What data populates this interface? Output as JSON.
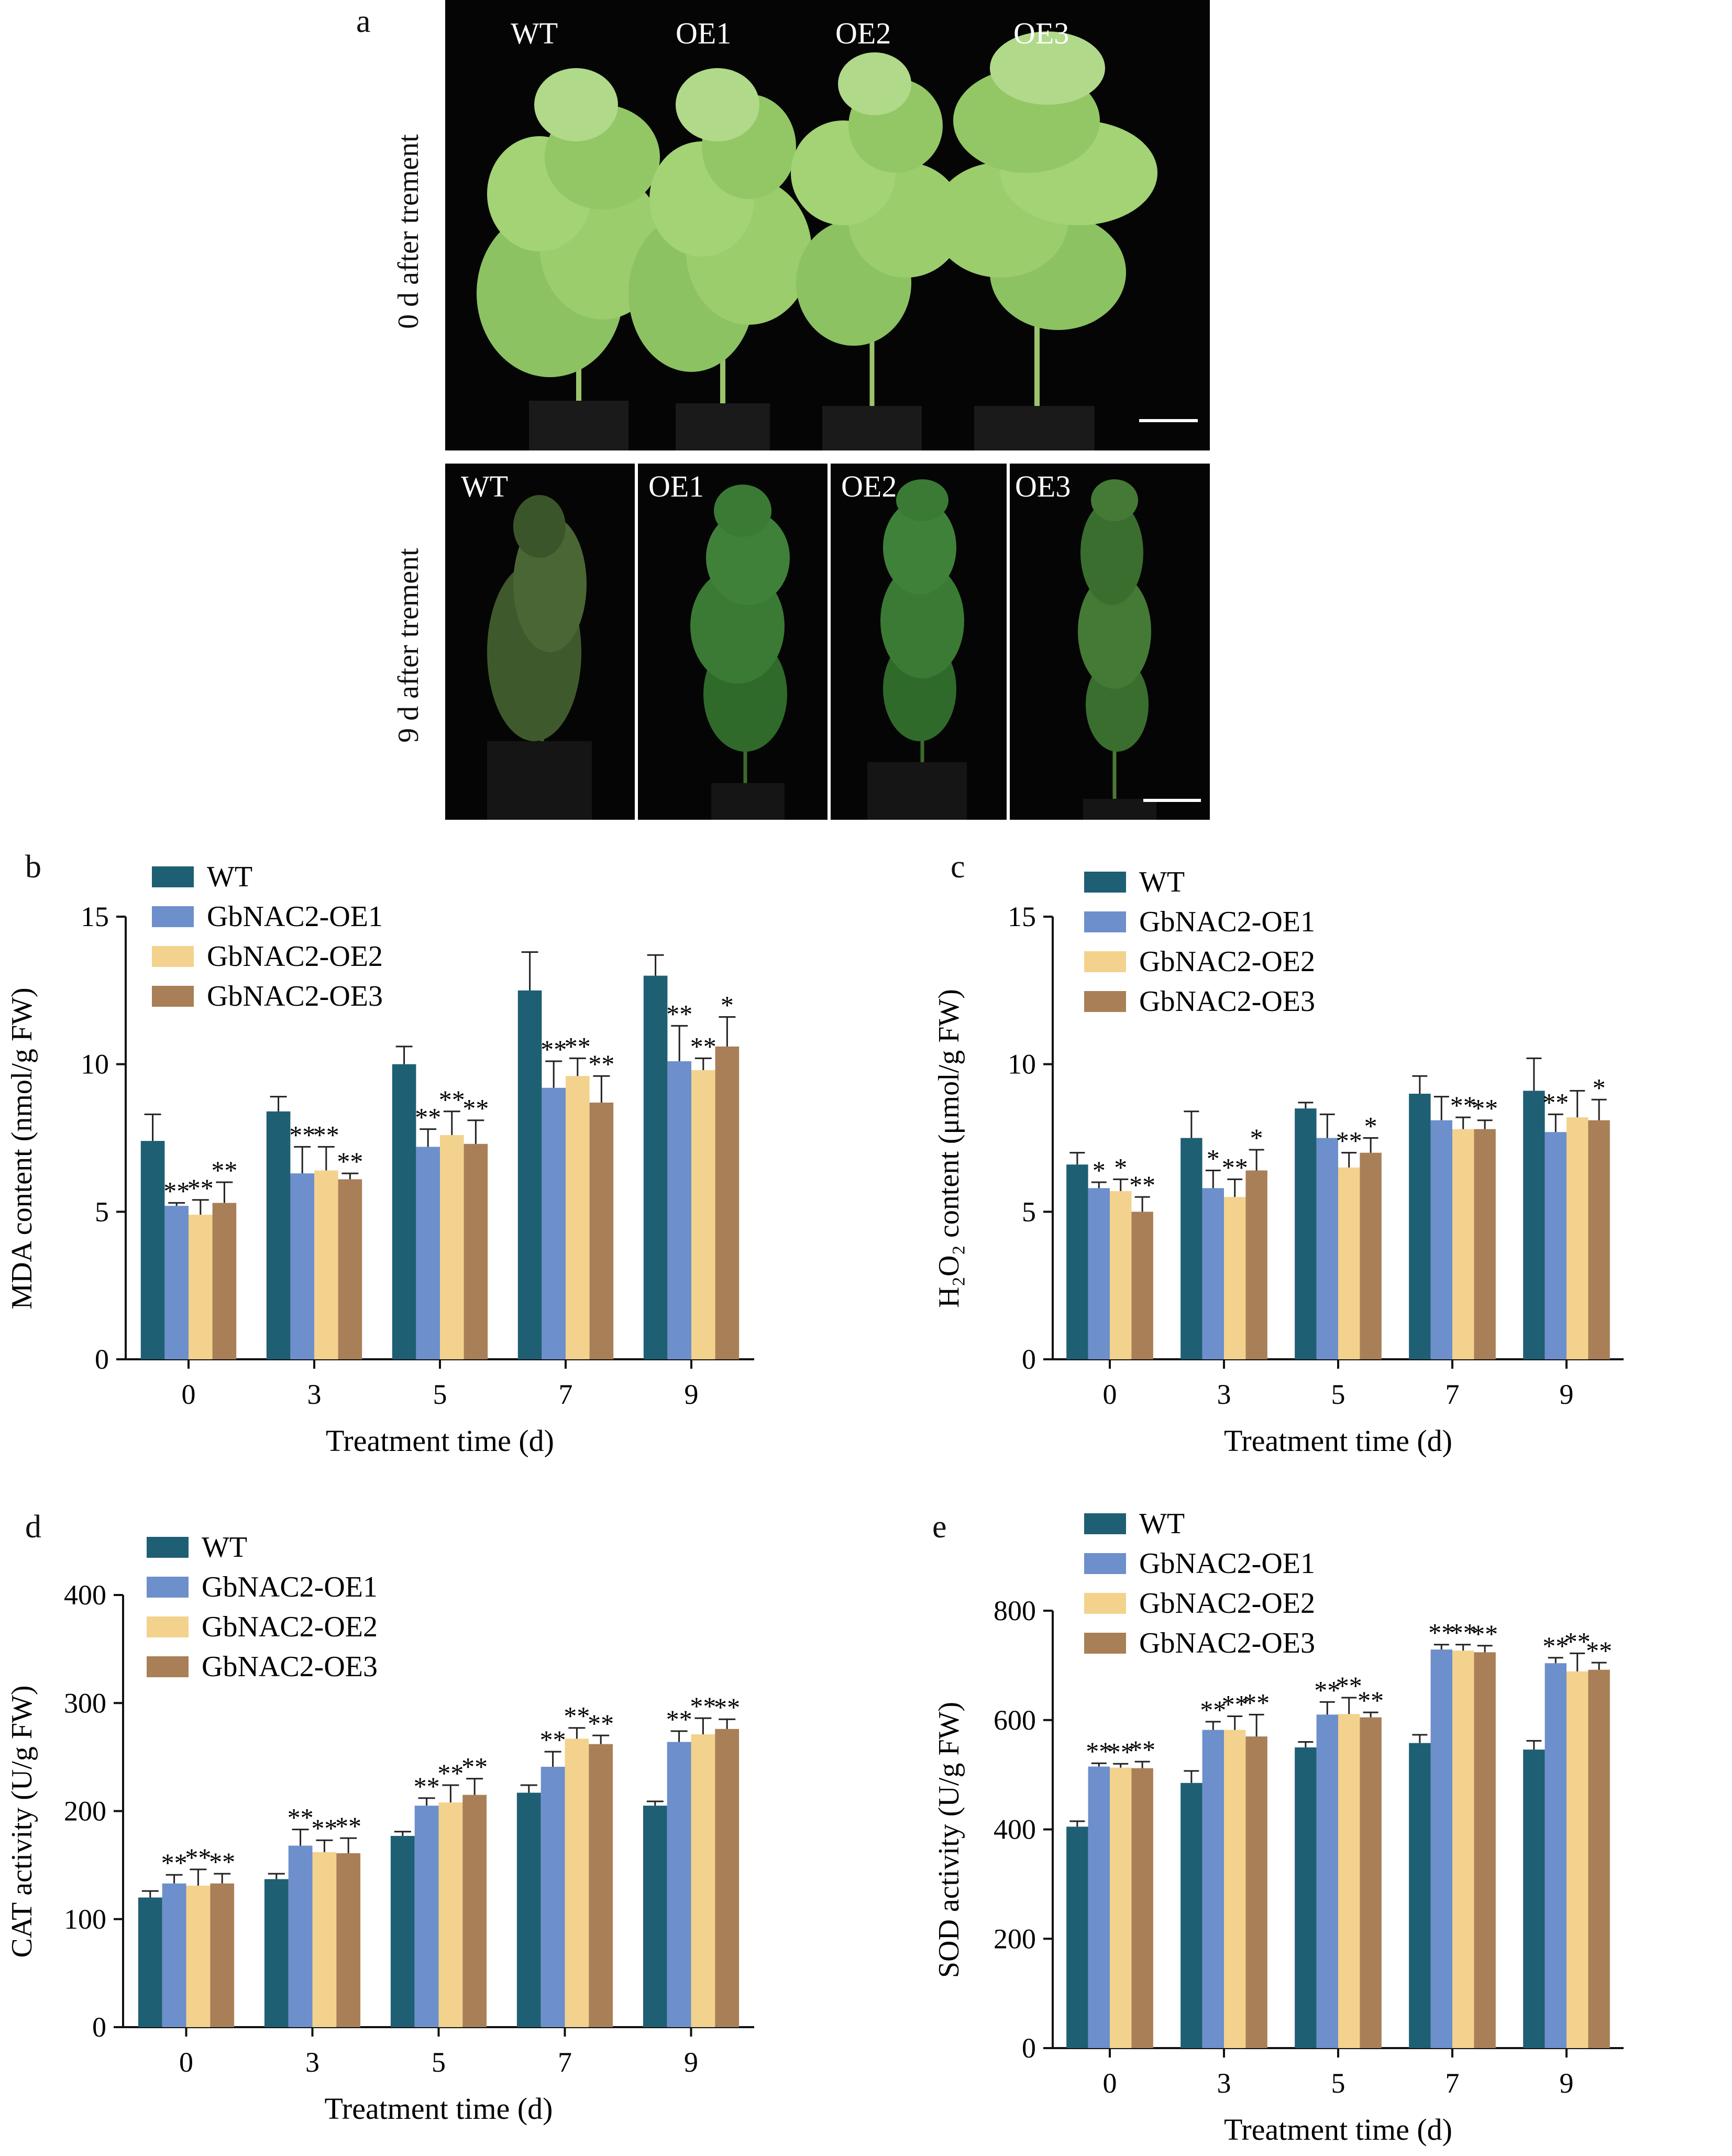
{
  "panel_a": {
    "letter": "a",
    "row_top_label": "0 d after trement",
    "row_bottom_label": "9 d after trement",
    "top_labels": [
      "WT",
      "OE1",
      "OE2",
      "OE3"
    ],
    "bottom_labels": [
      "WT",
      "OE1",
      "OE2",
      "OE3"
    ]
  },
  "colors": {
    "WT": "#1e5f73",
    "GbNAC2-OE1": "#6d8fcb",
    "GbNAC2-OE2": "#f3d28e",
    "GbNAC2-OE3": "#a97f57",
    "photo_background": "#050505",
    "healthy_leaf": "#8cc262",
    "wilted_leaf": "#3e5a2c"
  },
  "chart_data": [
    {
      "id": "b",
      "letter": "b",
      "type": "bar",
      "ylabel": "MDA content (nmol/g FW)",
      "xlabel": "Treatment time (d)",
      "categories": [
        "0",
        "3",
        "5",
        "7",
        "9"
      ],
      "ylim": [
        0,
        15
      ],
      "yticks": [
        0,
        5,
        10,
        15
      ],
      "legend_position": "top-left",
      "series": [
        {
          "name": "WT",
          "values": [
            7.4,
            8.4,
            10.0,
            12.5,
            13.0
          ],
          "errors": [
            0.9,
            0.5,
            0.6,
            1.3,
            0.7
          ],
          "sig": [
            "",
            "",
            "",
            "",
            ""
          ]
        },
        {
          "name": "GbNAC2-OE1",
          "values": [
            5.2,
            6.3,
            7.2,
            9.2,
            10.1
          ],
          "errors": [
            0.1,
            0.9,
            0.6,
            0.9,
            1.2
          ],
          "sig": [
            "**",
            "**",
            "**",
            "**",
            "**"
          ]
        },
        {
          "name": "GbNAC2-OE2",
          "values": [
            4.9,
            6.4,
            7.6,
            9.6,
            9.8
          ],
          "errors": [
            0.5,
            0.8,
            0.8,
            0.6,
            0.4
          ],
          "sig": [
            "**",
            "**",
            "**",
            "**",
            "**"
          ]
        },
        {
          "name": "GbNAC2-OE3",
          "values": [
            5.3,
            6.1,
            7.3,
            8.7,
            10.6
          ],
          "errors": [
            0.7,
            0.2,
            0.8,
            0.9,
            1.0
          ],
          "sig": [
            "**",
            "**",
            "**",
            "**",
            "*"
          ]
        }
      ]
    },
    {
      "id": "c",
      "letter": "c",
      "type": "bar",
      "ylabel": "H₂O₂ content (μmol/g FW)",
      "xlabel": "Treatment time (d)",
      "categories": [
        "0",
        "3",
        "5",
        "7",
        "9"
      ],
      "ylim": [
        0,
        15
      ],
      "yticks": [
        0,
        5,
        10,
        15
      ],
      "legend_position": "top-left",
      "series": [
        {
          "name": "WT",
          "values": [
            6.6,
            7.5,
            8.5,
            9.0,
            9.1
          ],
          "errors": [
            0.4,
            0.9,
            0.2,
            0.6,
            1.1
          ],
          "sig": [
            "",
            "",
            "",
            "",
            ""
          ]
        },
        {
          "name": "GbNAC2-OE1",
          "values": [
            5.8,
            5.8,
            7.5,
            8.1,
            7.7
          ],
          "errors": [
            0.2,
            0.6,
            0.8,
            0.8,
            0.6
          ],
          "sig": [
            "*",
            "*",
            "",
            "",
            "**"
          ]
        },
        {
          "name": "GbNAC2-OE2",
          "values": [
            5.7,
            5.5,
            6.5,
            7.8,
            8.2
          ],
          "errors": [
            0.4,
            0.6,
            0.5,
            0.4,
            0.9
          ],
          "sig": [
            "*",
            "**",
            "**",
            "**",
            ""
          ]
        },
        {
          "name": "GbNAC2-OE3",
          "values": [
            5.0,
            6.4,
            7.0,
            7.8,
            8.1
          ],
          "errors": [
            0.5,
            0.7,
            0.5,
            0.3,
            0.7
          ],
          "sig": [
            "**",
            "*",
            "*",
            "**",
            "*"
          ]
        }
      ]
    },
    {
      "id": "d",
      "letter": "d",
      "type": "bar",
      "ylabel": "CAT activity (U/g FW)",
      "xlabel": "Treatment time (d)",
      "categories": [
        "0",
        "3",
        "5",
        "7",
        "9"
      ],
      "ylim": [
        0,
        400
      ],
      "yticks": [
        0,
        100,
        200,
        300,
        400
      ],
      "legend_position": "top-left",
      "series": [
        {
          "name": "WT",
          "values": [
            120,
            137,
            177,
            217,
            205
          ],
          "errors": [
            6,
            5,
            4,
            7,
            4
          ],
          "sig": [
            "",
            "",
            "",
            "",
            ""
          ]
        },
        {
          "name": "GbNAC2-OE1",
          "values": [
            133,
            168,
            205,
            241,
            264
          ],
          "errors": [
            8,
            15,
            7,
            14,
            10
          ],
          "sig": [
            "**",
            "**",
            "**",
            "**",
            "**"
          ]
        },
        {
          "name": "GbNAC2-OE2",
          "values": [
            131,
            162,
            208,
            267,
            271
          ],
          "errors": [
            15,
            11,
            16,
            10,
            15
          ],
          "sig": [
            "**",
            "**",
            "**",
            "**",
            "**"
          ]
        },
        {
          "name": "GbNAC2-OE3",
          "values": [
            133,
            161,
            215,
            262,
            276
          ],
          "errors": [
            9,
            14,
            15,
            8,
            9
          ],
          "sig": [
            "**",
            "**",
            "**",
            "**",
            "**"
          ]
        }
      ]
    },
    {
      "id": "e",
      "letter": "e",
      "type": "bar",
      "ylabel": "SOD activity (U/g FW)",
      "xlabel": "Treatment time (d)",
      "categories": [
        "0",
        "3",
        "5",
        "7",
        "9"
      ],
      "ylim": [
        0,
        800
      ],
      "yticks": [
        0,
        200,
        400,
        600,
        800
      ],
      "legend_position": "top-left",
      "series": [
        {
          "name": "WT",
          "values": [
            405,
            485,
            550,
            558,
            546
          ],
          "errors": [
            10,
            22,
            10,
            15,
            16
          ],
          "sig": [
            "",
            "",
            "",
            "",
            ""
          ]
        },
        {
          "name": "GbNAC2-OE1",
          "values": [
            515,
            582,
            610,
            729,
            704
          ],
          "errors": [
            6,
            15,
            23,
            9,
            10
          ],
          "sig": [
            "**",
            "**",
            "**",
            "**",
            "**"
          ]
        },
        {
          "name": "GbNAC2-OE2",
          "values": [
            513,
            582,
            611,
            727,
            689
          ],
          "errors": [
            7,
            25,
            30,
            11,
            33
          ],
          "sig": [
            "**",
            "**",
            "**",
            "**",
            "**"
          ]
        },
        {
          "name": "GbNAC2-OE3",
          "values": [
            512,
            570,
            605,
            724,
            692
          ],
          "errors": [
            12,
            40,
            9,
            12,
            13
          ],
          "sig": [
            "**",
            "**",
            "**",
            "**",
            "**"
          ]
        }
      ]
    }
  ]
}
